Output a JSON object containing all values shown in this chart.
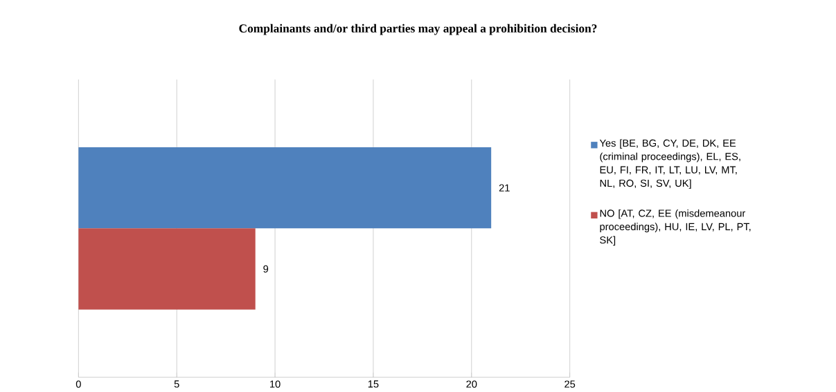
{
  "chart_data": {
    "type": "bar",
    "orientation": "horizontal",
    "title": "Complainants and/or third parties may appeal a prohibition decision?",
    "categories": [
      null
    ],
    "series": [
      {
        "name": "Yes [BE, BG, CY, DE, DK, EE (criminal proceedings), EL, ES, EU, FI, FR, IT, LT, LU, LV, MT, NL, RO, SI, SV, UK]",
        "color": "#4f81bd",
        "values": [
          21
        ]
      },
      {
        "name": "NO [AT, CZ, EE (misdemeanour proceedings), HU, IE, LV, PL, PT, SK]",
        "color": "#c0504d",
        "values": [
          9
        ]
      }
    ],
    "xlim": [
      0,
      25
    ],
    "xticks": [
      0,
      5,
      10,
      15,
      20,
      25
    ],
    "grid": "x",
    "legend": "right",
    "data_labels": true
  }
}
